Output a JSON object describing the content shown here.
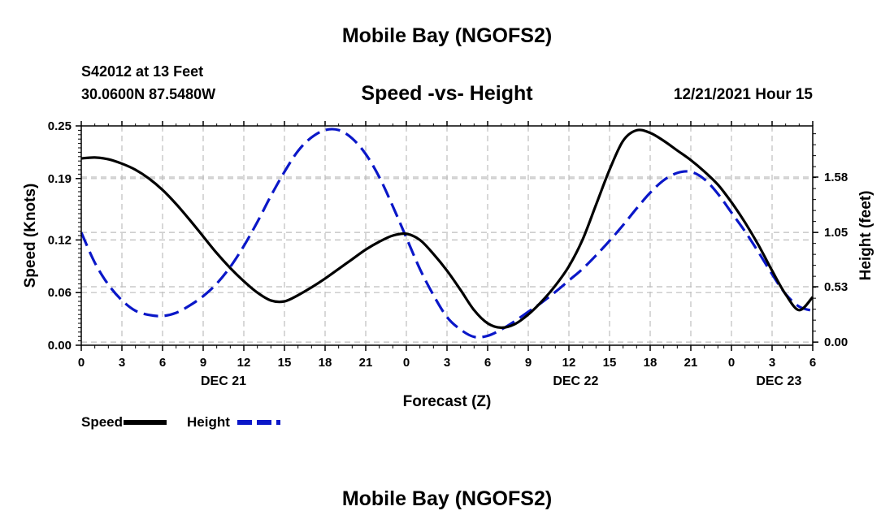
{
  "header": {
    "title": "Mobile Bay (NGOFS2)",
    "station": "S42012 at 13 Feet",
    "coords": "30.0600N  87.5480W",
    "plot_title": "Speed -vs- Height",
    "datetime": "12/21/2021 Hour 15"
  },
  "footer": {
    "title": "Mobile Bay (NGOFS2)"
  },
  "colors": {
    "speed": "#000000",
    "height": "#0a17c8",
    "grid": "#bdbdbd"
  },
  "chart_data": {
    "type": "line",
    "xlabel": "Forecast (Z)",
    "ylabel_left": "Speed (Knots)",
    "ylabel_right": "Height (feet)",
    "x_ticks": [
      0,
      3,
      6,
      9,
      12,
      15,
      18,
      21,
      24,
      27,
      30,
      33,
      36,
      39,
      42,
      45,
      48,
      51,
      54
    ],
    "x_tick_labels": [
      "0",
      "3",
      "6",
      "9",
      "12",
      "15",
      "18",
      "21",
      "0",
      "3",
      "6",
      "9",
      "12",
      "15",
      "18",
      "21",
      "0",
      "3",
      "6"
    ],
    "date_labels": [
      {
        "x": 10.5,
        "label": "DEC 21"
      },
      {
        "x": 36.5,
        "label": "DEC 22"
      },
      {
        "x": 51.5,
        "label": "DEC 23"
      }
    ],
    "xlim": [
      0,
      54
    ],
    "y_left": {
      "lim": [
        0,
        0.25
      ],
      "ticks": [
        0,
        0.06,
        0.12,
        0.19,
        0.25
      ],
      "tick_labels": [
        "0.00",
        "0.06",
        "0.12",
        "0.19",
        "0.25"
      ]
    },
    "y_right": {
      "lim": [
        -0.03,
        2.07
      ],
      "ticks": [
        0,
        0.53,
        1.05,
        1.58
      ],
      "tick_labels": [
        "0.00",
        "0.53",
        "1.05",
        "1.58"
      ]
    },
    "grid": true,
    "series": [
      {
        "name": "Speed",
        "axis": "left",
        "style": "solid",
        "points": [
          [
            0,
            0.213
          ],
          [
            1,
            0.214
          ],
          [
            2,
            0.212
          ],
          [
            3,
            0.207
          ],
          [
            4,
            0.2
          ],
          [
            5,
            0.19
          ],
          [
            6,
            0.177
          ],
          [
            7,
            0.161
          ],
          [
            8,
            0.143
          ],
          [
            9,
            0.124
          ],
          [
            10,
            0.105
          ],
          [
            11,
            0.088
          ],
          [
            12,
            0.073
          ],
          [
            13,
            0.06
          ],
          [
            14,
            0.051
          ],
          [
            15,
            0.05
          ],
          [
            16,
            0.057
          ],
          [
            17,
            0.066
          ],
          [
            18,
            0.076
          ],
          [
            19,
            0.087
          ],
          [
            20,
            0.098
          ],
          [
            21,
            0.109
          ],
          [
            22,
            0.118
          ],
          [
            23,
            0.125
          ],
          [
            24,
            0.127
          ],
          [
            25,
            0.12
          ],
          [
            26,
            0.104
          ],
          [
            27,
            0.085
          ],
          [
            28,
            0.063
          ],
          [
            29,
            0.04
          ],
          [
            30,
            0.025
          ],
          [
            31,
            0.02
          ],
          [
            32,
            0.024
          ],
          [
            33,
            0.035
          ],
          [
            34,
            0.05
          ],
          [
            35,
            0.068
          ],
          [
            36,
            0.09
          ],
          [
            37,
            0.12
          ],
          [
            38,
            0.16
          ],
          [
            39,
            0.2
          ],
          [
            40,
            0.233
          ],
          [
            41,
            0.245
          ],
          [
            42,
            0.242
          ],
          [
            43,
            0.233
          ],
          [
            44,
            0.222
          ],
          [
            45,
            0.211
          ],
          [
            46,
            0.198
          ],
          [
            47,
            0.183
          ],
          [
            48,
            0.163
          ],
          [
            49,
            0.14
          ],
          [
            50,
            0.114
          ],
          [
            51,
            0.085
          ],
          [
            52,
            0.058
          ],
          [
            53,
            0.04
          ],
          [
            54,
            0.055
          ]
        ]
      },
      {
        "name": "Height",
        "axis": "right",
        "style": "dashed",
        "points": [
          [
            0,
            1.05
          ],
          [
            1,
            0.76
          ],
          [
            2,
            0.55
          ],
          [
            3,
            0.4
          ],
          [
            4,
            0.3
          ],
          [
            5,
            0.26
          ],
          [
            6,
            0.25
          ],
          [
            7,
            0.28
          ],
          [
            8,
            0.35
          ],
          [
            9,
            0.44
          ],
          [
            10,
            0.56
          ],
          [
            11,
            0.72
          ],
          [
            12,
            0.92
          ],
          [
            13,
            1.15
          ],
          [
            14,
            1.4
          ],
          [
            15,
            1.63
          ],
          [
            16,
            1.83
          ],
          [
            17,
            1.96
          ],
          [
            18,
            2.03
          ],
          [
            19,
            2.03
          ],
          [
            20,
            1.95
          ],
          [
            21,
            1.8
          ],
          [
            22,
            1.58
          ],
          [
            23,
            1.3
          ],
          [
            24,
            1.0
          ],
          [
            25,
            0.7
          ],
          [
            26,
            0.45
          ],
          [
            27,
            0.24
          ],
          [
            28,
            0.12
          ],
          [
            29,
            0.05
          ],
          [
            30,
            0.06
          ],
          [
            31,
            0.12
          ],
          [
            32,
            0.2
          ],
          [
            33,
            0.29
          ],
          [
            34,
            0.38
          ],
          [
            35,
            0.48
          ],
          [
            36,
            0.59
          ],
          [
            37,
            0.7
          ],
          [
            38,
            0.83
          ],
          [
            39,
            0.97
          ],
          [
            40,
            1.12
          ],
          [
            41,
            1.28
          ],
          [
            42,
            1.43
          ],
          [
            43,
            1.55
          ],
          [
            44,
            1.62
          ],
          [
            45,
            1.63
          ],
          [
            46,
            1.56
          ],
          [
            47,
            1.42
          ],
          [
            48,
            1.24
          ],
          [
            49,
            1.06
          ],
          [
            50,
            0.86
          ],
          [
            51,
            0.65
          ],
          [
            52,
            0.46
          ],
          [
            53,
            0.34
          ],
          [
            54,
            0.3
          ]
        ]
      }
    ],
    "legend": [
      {
        "label": "Speed",
        "series": "Speed"
      },
      {
        "label": "Height",
        "series": "Height"
      }
    ],
    "legend_position": "bottom-left"
  }
}
